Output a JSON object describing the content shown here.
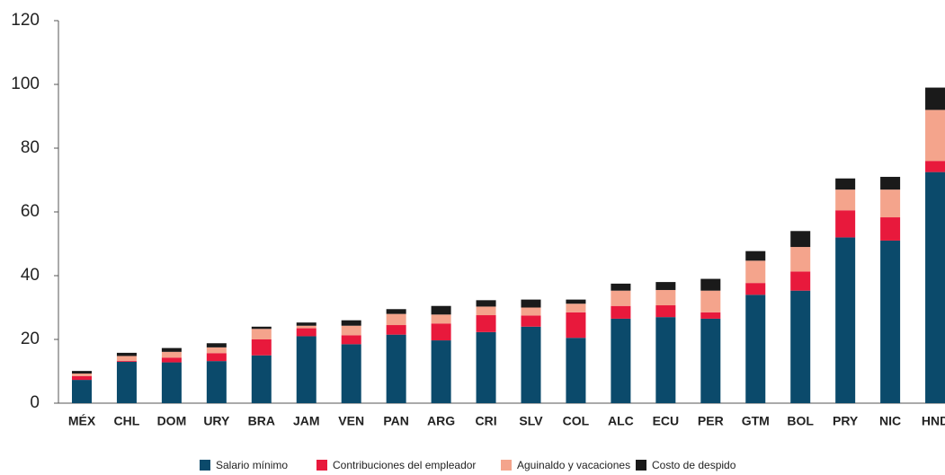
{
  "chart_data": {
    "type": "stacked_bar",
    "categories": [
      "MÉX",
      "CHL",
      "DOM",
      "URY",
      "BRA",
      "JAM",
      "VEN",
      "PAN",
      "ARG",
      "CRI",
      "SLV",
      "COL",
      "ALC",
      "ECU",
      "PER",
      "GTM",
      "BOL",
      "PRY",
      "NIC",
      "HND"
    ],
    "series": [
      {
        "name": "Salario mínimo",
        "color": "#0b4a6b",
        "values": [
          7.3,
          13,
          12.8,
          13.2,
          15,
          21,
          18.5,
          21.5,
          19.7,
          22.3,
          24,
          20.5,
          26.5,
          27,
          26.5,
          34,
          35.3,
          52,
          51,
          72.5
        ]
      },
      {
        "name": "Contribuciones del empleador",
        "color": "#e8193c",
        "values": [
          1.2,
          0.3,
          1.5,
          2.5,
          5,
          2.5,
          2.8,
          3,
          5.3,
          5.3,
          3.5,
          8,
          4,
          3.7,
          2,
          3.7,
          6,
          8.5,
          7.3,
          3.5
        ]
      },
      {
        "name": "Aguinaldo y vacaciones",
        "color": "#f4a48c",
        "values": [
          0.8,
          1.5,
          1.8,
          1.8,
          3.3,
          0.8,
          3,
          3.5,
          2.8,
          2.7,
          2.5,
          2.7,
          4.8,
          4.8,
          6.8,
          7,
          7.7,
          6.5,
          8.7,
          16
        ]
      },
      {
        "name": "Costo de despido",
        "color": "#1a1a1a",
        "values": [
          0.8,
          1,
          1.2,
          1.3,
          0.7,
          1,
          1.7,
          1.5,
          2.7,
          2,
          2.5,
          1.3,
          2.2,
          2.5,
          3.7,
          3,
          5,
          3.5,
          4,
          7
        ]
      }
    ],
    "ylim": [
      0,
      120
    ],
    "yticks": [
      0,
      20,
      40,
      60,
      80,
      100,
      120
    ],
    "grid": false,
    "legend": "bottom"
  }
}
